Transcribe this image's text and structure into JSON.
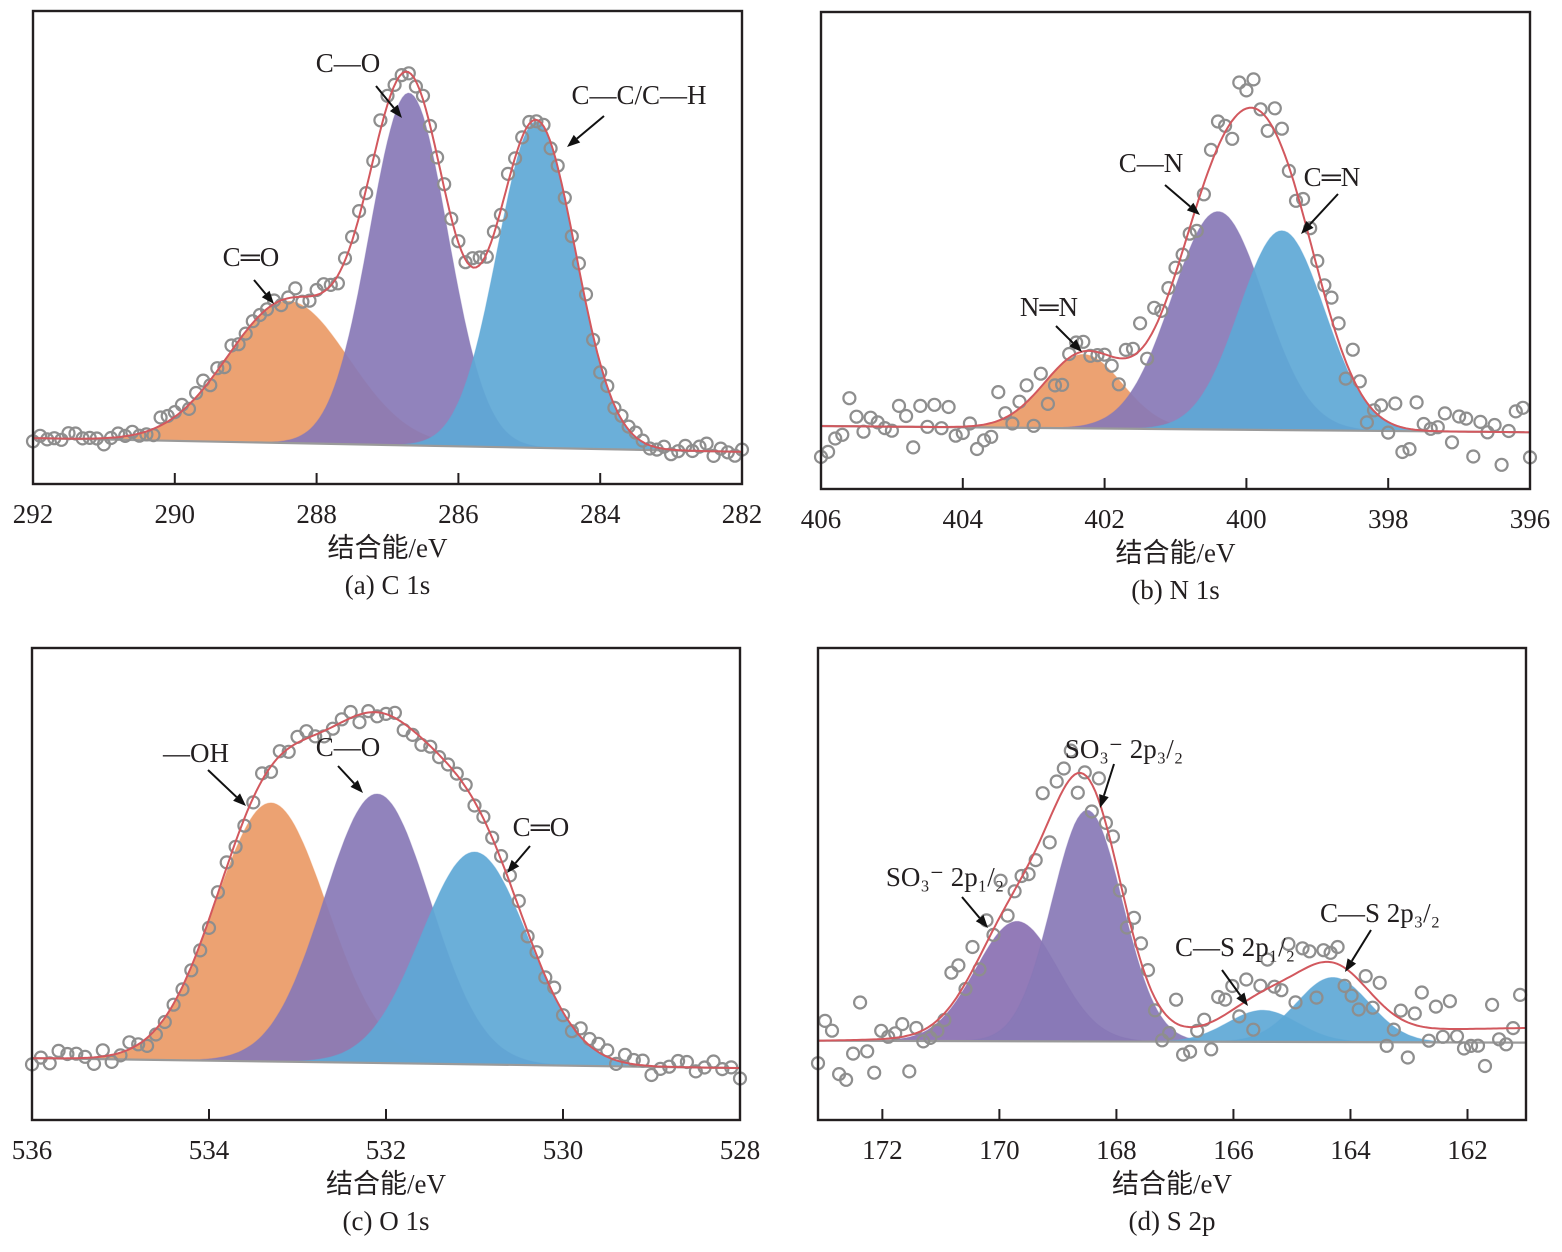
{
  "figure": {
    "colors": {
      "orange": "#EA9A66",
      "purple": "#8878B6",
      "purple_dark": "#8A70B2",
      "blue": "#5EA8D6",
      "fit": "#D2585E",
      "points": "#8E8E8E",
      "baseline": "#9A9A9A"
    }
  },
  "chart_data": [
    {
      "type": "area",
      "id": "c1s",
      "caption": "(a) C 1s",
      "xlabel": "结合能/eV",
      "ylabel": "",
      "xlim": [
        292,
        282
      ],
      "ylim": [
        0,
        100
      ],
      "xticks": [
        292,
        290,
        288,
        286,
        284,
        282
      ],
      "grid": false,
      "baseline": [
        9.7,
        6.8
      ],
      "fit_baseline": [
        9.7,
        6.8
      ],
      "noise": 1.6,
      "step": 0.1,
      "peaks": [
        {
          "name": "C=O",
          "label": "C═O",
          "center": 288.4,
          "amplitude": 30,
          "sigma": 0.85,
          "color": "orange"
        },
        {
          "name": "C-O",
          "label": "C—O",
          "center": 286.7,
          "amplitude": 74.5,
          "sigma": 0.55,
          "color": "purple"
        },
        {
          "name": "C-C/C-H",
          "label": "C—C/C—H",
          "center": 284.9,
          "amplitude": 69,
          "sigma": 0.55,
          "color": "blue"
        }
      ]
    },
    {
      "type": "area",
      "id": "n1s",
      "caption": "(b) N 1s",
      "xlabel": "结合能/eV",
      "ylabel": "",
      "xlim": [
        406,
        396
      ],
      "ylim": [
        0,
        100
      ],
      "xticks": [
        406,
        404,
        402,
        400,
        398,
        396
      ],
      "grid": false,
      "baseline": [
        13.2,
        11.9
      ],
      "fit_baseline": [
        13.2,
        11.9
      ],
      "noise": 5.5,
      "step": 0.1,
      "peaks": [
        {
          "name": "N=N",
          "label": "N═N",
          "center": 402.3,
          "amplitude": 15.5,
          "sigma": 0.55,
          "color": "orange"
        },
        {
          "name": "C-N",
          "label": "C—N",
          "center": 400.4,
          "amplitude": 45.7,
          "sigma": 0.65,
          "color": "purple"
        },
        {
          "name": "C=N",
          "label": "C═N",
          "center": 399.5,
          "amplitude": 41.8,
          "sigma": 0.6,
          "color": "blue"
        }
      ]
    },
    {
      "type": "area",
      "id": "o1s",
      "caption": "(c) O 1s",
      "xlabel": "结合能/eV",
      "ylabel": "",
      "xlim": [
        536,
        528
      ],
      "ylim": [
        0,
        100
      ],
      "xticks": [
        536,
        534,
        532,
        530,
        528
      ],
      "grid": false,
      "baseline": [
        13.1,
        11.0
      ],
      "fit_baseline": [
        13.1,
        11.0
      ],
      "noise": 1.8,
      "step": 0.1,
      "peaks": [
        {
          "name": "-OH",
          "label": "—OH",
          "center": 533.3,
          "amplitude": 54.8,
          "sigma": 0.63,
          "color": "orange"
        },
        {
          "name": "C-O",
          "label": "C—O",
          "center": 532.1,
          "amplitude": 57,
          "sigma": 0.6,
          "color": "purple"
        },
        {
          "name": "C=O",
          "label": "C═O",
          "center": 531.0,
          "amplitude": 45,
          "sigma": 0.6,
          "color": "blue"
        }
      ]
    },
    {
      "type": "area",
      "id": "s2p",
      "caption": "(d) S 2p",
      "xlabel": "结合能/eV",
      "ylabel": "",
      "xlim": [
        173.1,
        161.0
      ],
      "ylim": [
        0,
        100
      ],
      "xticks": [
        172,
        170,
        168,
        166,
        164,
        162
      ],
      "grid": false,
      "baseline": [
        16.8,
        16.4
      ],
      "fit_baseline": [
        16.8,
        19.5
      ],
      "noise": 7.5,
      "step": 0.12,
      "peaks": [
        {
          "name": "SO3- 2p1/2",
          "label": "SO₃⁻ 2p₁/₂",
          "center": 169.7,
          "amplitude": 25.4,
          "sigma": 0.7,
          "color": "purple_dark"
        },
        {
          "name": "SO3- 2p3/2",
          "label": "SO₃⁻ 2p₃/₂",
          "center": 168.5,
          "amplitude": 49,
          "sigma": 0.6,
          "color": "purple"
        },
        {
          "name": "C-S 2p1/2",
          "label": "C—S 2p₁/₂",
          "center": 165.5,
          "amplitude": 6.7,
          "sigma": 0.6,
          "color": "blue"
        },
        {
          "name": "C-S 2p3/2",
          "label": "C—S 2p₃/₂",
          "center": 164.3,
          "amplitude": 13.7,
          "sigma": 0.62,
          "color": "blue"
        }
      ]
    }
  ]
}
